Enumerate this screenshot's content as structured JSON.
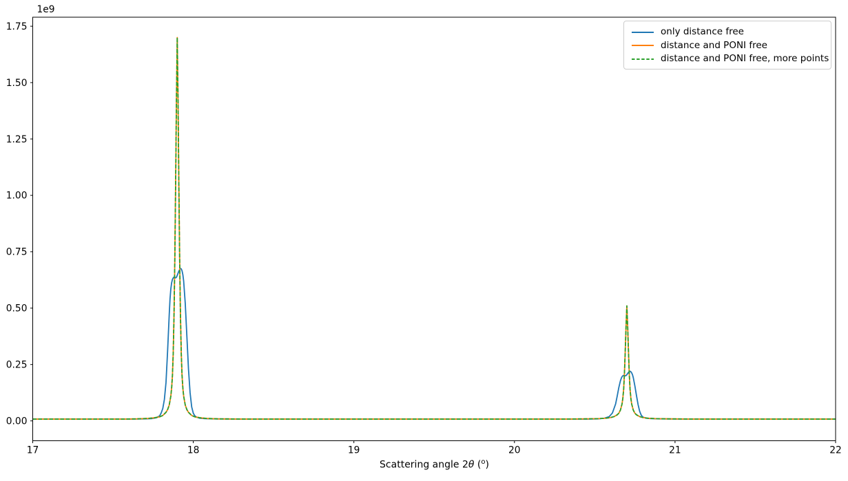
{
  "figure": {
    "xlabel_parts": {
      "prefix": "Scattering angle 2",
      "theta": "θ",
      "open": " (",
      "sup": "o",
      "close": ")"
    }
  },
  "legend": {
    "entries": [
      {
        "label": "only distance free",
        "color": "#1f77b4",
        "dash": "solid"
      },
      {
        "label": "distance and PONI free",
        "color": "#ff7f0e",
        "dash": "solid"
      },
      {
        "label": "distance and PONI free, more points",
        "color": "#2ca02c",
        "dash": "dashed"
      }
    ]
  },
  "chart_data": {
    "type": "line",
    "title": "",
    "xlabel": "Scattering angle 2θ (º)",
    "ylabel": "",
    "y_offset_label": "1e9",
    "y_unit_multiplier": 1000000000.0,
    "xlim": [
      17,
      22
    ],
    "ylim": [
      -0.088,
      1.79
    ],
    "grid": false,
    "legend_position": "upper right",
    "x_ticks": [
      17,
      18,
      19,
      20,
      21,
      22
    ],
    "x_tick_labels": [
      "17",
      "18",
      "19",
      "20",
      "21",
      "22"
    ],
    "y_ticks": [
      0.0,
      0.25,
      0.5,
      0.75,
      1.0,
      1.25,
      1.5,
      1.75
    ],
    "y_tick_labels": [
      "0.00",
      "0.25",
      "0.50",
      "0.75",
      "1.00",
      "1.25",
      "1.50",
      "1.75"
    ],
    "peaks_summary": {
      "only_distance_free": [
        {
          "center_2theta": 17.92,
          "height_1e9": 0.68,
          "shape": "broad double hump with left shoulder 0.64"
        },
        {
          "center_2theta": 20.72,
          "height_1e9": 0.22,
          "shape": "broad double hump with left shoulder 0.20"
        }
      ],
      "distance_and_PONI_free": [
        {
          "center_2theta": 17.9,
          "height_1e9": 1.7,
          "shape": "sharp"
        },
        {
          "center_2theta": 20.7,
          "height_1e9": 0.51,
          "shape": "sharp"
        }
      ]
    },
    "series": [
      {
        "id": "only-distance-free",
        "name": "only distance free",
        "color": "#1f77b4",
        "linestyle": "solid",
        "points": [
          [
            17.0,
            0.008
          ],
          [
            17.3,
            0.008
          ],
          [
            17.6,
            0.008
          ],
          [
            17.7,
            0.009
          ],
          [
            17.74,
            0.01
          ],
          [
            17.77,
            0.014
          ],
          [
            17.79,
            0.022
          ],
          [
            17.8,
            0.035
          ],
          [
            17.81,
            0.055
          ],
          [
            17.82,
            0.095
          ],
          [
            17.83,
            0.17
          ],
          [
            17.84,
            0.31
          ],
          [
            17.85,
            0.47
          ],
          [
            17.855,
            0.54
          ],
          [
            17.86,
            0.585
          ],
          [
            17.865,
            0.612
          ],
          [
            17.87,
            0.627
          ],
          [
            17.875,
            0.634
          ],
          [
            17.88,
            0.638
          ],
          [
            17.885,
            0.636
          ],
          [
            17.89,
            0.634
          ],
          [
            17.895,
            0.637
          ],
          [
            17.9,
            0.645
          ],
          [
            17.905,
            0.655
          ],
          [
            17.91,
            0.664
          ],
          [
            17.915,
            0.671
          ],
          [
            17.92,
            0.676
          ],
          [
            17.925,
            0.674
          ],
          [
            17.93,
            0.665
          ],
          [
            17.935,
            0.648
          ],
          [
            17.94,
            0.62
          ],
          [
            17.95,
            0.52
          ],
          [
            17.96,
            0.375
          ],
          [
            17.97,
            0.23
          ],
          [
            17.98,
            0.125
          ],
          [
            17.99,
            0.062
          ],
          [
            18.0,
            0.034
          ],
          [
            18.01,
            0.022
          ],
          [
            18.02,
            0.017
          ],
          [
            18.04,
            0.012
          ],
          [
            18.07,
            0.01
          ],
          [
            18.12,
            0.009
          ],
          [
            18.3,
            0.008
          ],
          [
            18.7,
            0.008
          ],
          [
            19.2,
            0.008
          ],
          [
            19.8,
            0.008
          ],
          [
            20.3,
            0.008
          ],
          [
            20.45,
            0.008
          ],
          [
            20.52,
            0.009
          ],
          [
            20.56,
            0.012
          ],
          [
            20.59,
            0.019
          ],
          [
            20.61,
            0.035
          ],
          [
            20.63,
            0.075
          ],
          [
            20.64,
            0.11
          ],
          [
            20.65,
            0.148
          ],
          [
            20.66,
            0.178
          ],
          [
            20.665,
            0.188
          ],
          [
            20.67,
            0.196
          ],
          [
            20.675,
            0.2
          ],
          [
            20.68,
            0.202
          ],
          [
            20.685,
            0.201
          ],
          [
            20.69,
            0.2
          ],
          [
            20.695,
            0.201
          ],
          [
            20.7,
            0.205
          ],
          [
            20.705,
            0.21
          ],
          [
            20.71,
            0.215
          ],
          [
            20.715,
            0.218
          ],
          [
            20.72,
            0.22
          ],
          [
            20.725,
            0.218
          ],
          [
            20.73,
            0.213
          ],
          [
            20.735,
            0.205
          ],
          [
            20.74,
            0.192
          ],
          [
            20.75,
            0.155
          ],
          [
            20.76,
            0.112
          ],
          [
            20.77,
            0.072
          ],
          [
            20.78,
            0.042
          ],
          [
            20.79,
            0.025
          ],
          [
            20.8,
            0.017
          ],
          [
            20.82,
            0.012
          ],
          [
            20.85,
            0.01
          ],
          [
            20.9,
            0.009
          ],
          [
            21.1,
            0.008
          ],
          [
            21.5,
            0.008
          ],
          [
            22.0,
            0.008
          ]
        ]
      },
      {
        "id": "distance-and-poni-free",
        "name": "distance and PONI free",
        "color": "#ff7f0e",
        "linestyle": "solid",
        "points": [
          [
            17.0,
            0.008
          ],
          [
            17.3,
            0.008
          ],
          [
            17.55,
            0.008
          ],
          [
            17.65,
            0.009
          ],
          [
            17.72,
            0.011
          ],
          [
            17.76,
            0.014
          ],
          [
            17.79,
            0.018
          ],
          [
            17.81,
            0.024
          ],
          [
            17.83,
            0.038
          ],
          [
            17.84,
            0.05
          ],
          [
            17.85,
            0.07
          ],
          [
            17.86,
            0.11
          ],
          [
            17.865,
            0.145
          ],
          [
            17.87,
            0.2
          ],
          [
            17.875,
            0.3
          ],
          [
            17.88,
            0.47
          ],
          [
            17.885,
            0.72
          ],
          [
            17.89,
            1.05
          ],
          [
            17.895,
            1.42
          ],
          [
            17.9,
            1.7
          ],
          [
            17.905,
            1.42
          ],
          [
            17.91,
            1.05
          ],
          [
            17.915,
            0.72
          ],
          [
            17.92,
            0.47
          ],
          [
            17.925,
            0.3
          ],
          [
            17.93,
            0.2
          ],
          [
            17.935,
            0.145
          ],
          [
            17.94,
            0.11
          ],
          [
            17.95,
            0.07
          ],
          [
            17.96,
            0.05
          ],
          [
            17.97,
            0.038
          ],
          [
            17.99,
            0.024
          ],
          [
            18.01,
            0.018
          ],
          [
            18.04,
            0.014
          ],
          [
            18.08,
            0.011
          ],
          [
            18.15,
            0.009
          ],
          [
            18.35,
            0.008
          ],
          [
            18.8,
            0.008
          ],
          [
            19.4,
            0.008
          ],
          [
            20.0,
            0.008
          ],
          [
            20.3,
            0.008
          ],
          [
            20.45,
            0.009
          ],
          [
            20.52,
            0.01
          ],
          [
            20.57,
            0.012
          ],
          [
            20.6,
            0.015
          ],
          [
            20.62,
            0.019
          ],
          [
            20.64,
            0.027
          ],
          [
            20.65,
            0.034
          ],
          [
            20.66,
            0.048
          ],
          [
            20.67,
            0.075
          ],
          [
            20.675,
            0.1
          ],
          [
            20.68,
            0.14
          ],
          [
            20.685,
            0.21
          ],
          [
            20.69,
            0.31
          ],
          [
            20.695,
            0.42
          ],
          [
            20.7,
            0.51
          ],
          [
            20.705,
            0.42
          ],
          [
            20.71,
            0.31
          ],
          [
            20.715,
            0.21
          ],
          [
            20.72,
            0.14
          ],
          [
            20.725,
            0.1
          ],
          [
            20.73,
            0.075
          ],
          [
            20.74,
            0.048
          ],
          [
            20.75,
            0.034
          ],
          [
            20.76,
            0.027
          ],
          [
            20.78,
            0.019
          ],
          [
            20.8,
            0.015
          ],
          [
            20.83,
            0.012
          ],
          [
            20.88,
            0.01
          ],
          [
            20.95,
            0.009
          ],
          [
            21.15,
            0.008
          ],
          [
            21.6,
            0.008
          ],
          [
            22.0,
            0.008
          ]
        ]
      },
      {
        "id": "distance-and-poni-free-more-points",
        "name": "distance and PONI free, more points",
        "color": "#2ca02c",
        "linestyle": "dashed",
        "points": [
          [
            17.0,
            0.008
          ],
          [
            17.3,
            0.008
          ],
          [
            17.55,
            0.008
          ],
          [
            17.65,
            0.009
          ],
          [
            17.72,
            0.011
          ],
          [
            17.76,
            0.014
          ],
          [
            17.79,
            0.018
          ],
          [
            17.81,
            0.024
          ],
          [
            17.83,
            0.038
          ],
          [
            17.84,
            0.05
          ],
          [
            17.85,
            0.07
          ],
          [
            17.86,
            0.11
          ],
          [
            17.865,
            0.145
          ],
          [
            17.87,
            0.2
          ],
          [
            17.875,
            0.3
          ],
          [
            17.88,
            0.47
          ],
          [
            17.885,
            0.72
          ],
          [
            17.89,
            1.05
          ],
          [
            17.895,
            1.42
          ],
          [
            17.9,
            1.7
          ],
          [
            17.905,
            1.42
          ],
          [
            17.91,
            1.05
          ],
          [
            17.915,
            0.72
          ],
          [
            17.92,
            0.47
          ],
          [
            17.925,
            0.3
          ],
          [
            17.93,
            0.2
          ],
          [
            17.935,
            0.145
          ],
          [
            17.94,
            0.11
          ],
          [
            17.95,
            0.07
          ],
          [
            17.96,
            0.05
          ],
          [
            17.97,
            0.038
          ],
          [
            17.99,
            0.024
          ],
          [
            18.01,
            0.018
          ],
          [
            18.04,
            0.014
          ],
          [
            18.08,
            0.011
          ],
          [
            18.15,
            0.009
          ],
          [
            18.35,
            0.008
          ],
          [
            18.8,
            0.008
          ],
          [
            19.4,
            0.008
          ],
          [
            20.0,
            0.008
          ],
          [
            20.3,
            0.008
          ],
          [
            20.45,
            0.009
          ],
          [
            20.52,
            0.01
          ],
          [
            20.57,
            0.012
          ],
          [
            20.6,
            0.015
          ],
          [
            20.62,
            0.019
          ],
          [
            20.64,
            0.027
          ],
          [
            20.65,
            0.034
          ],
          [
            20.66,
            0.048
          ],
          [
            20.67,
            0.075
          ],
          [
            20.675,
            0.1
          ],
          [
            20.68,
            0.14
          ],
          [
            20.685,
            0.21
          ],
          [
            20.69,
            0.31
          ],
          [
            20.695,
            0.42
          ],
          [
            20.7,
            0.51
          ],
          [
            20.705,
            0.42
          ],
          [
            20.71,
            0.31
          ],
          [
            20.715,
            0.21
          ],
          [
            20.72,
            0.14
          ],
          [
            20.725,
            0.1
          ],
          [
            20.73,
            0.075
          ],
          [
            20.74,
            0.048
          ],
          [
            20.75,
            0.034
          ],
          [
            20.76,
            0.027
          ],
          [
            20.78,
            0.019
          ],
          [
            20.8,
            0.015
          ],
          [
            20.83,
            0.012
          ],
          [
            20.88,
            0.01
          ],
          [
            20.95,
            0.009
          ],
          [
            21.15,
            0.008
          ],
          [
            21.6,
            0.008
          ],
          [
            22.0,
            0.008
          ]
        ]
      }
    ]
  }
}
